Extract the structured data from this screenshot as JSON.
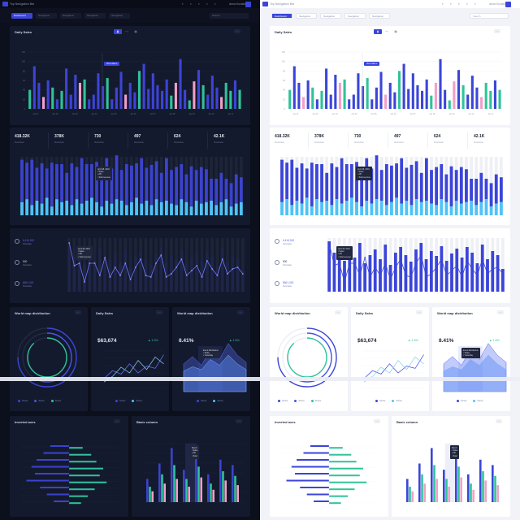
{
  "app": {
    "title": "Top Navigation Bar",
    "user": "Anna Kovalchuk"
  },
  "tabs": [
    {
      "label": "Dashboard",
      "active": true
    },
    {
      "label": "Navigation",
      "active": false
    },
    {
      "label": "Navigation",
      "active": false
    },
    {
      "label": "Navigation",
      "active": false
    },
    {
      "label": "Navigation",
      "active": false
    }
  ],
  "search": {
    "placeholder": "Search"
  },
  "topbar_icons": [
    "bell-icon",
    "calendar-icon",
    "mail-icon",
    "settings-icon",
    "globe-icon"
  ],
  "daily_sales_card": {
    "title": "Daily Sales",
    "toggle": [
      "bar",
      "line",
      "grid"
    ],
    "tooltip": "View data",
    "ylabels": [
      "120",
      "100",
      "80",
      "60",
      "40",
      "20",
      "0"
    ],
    "xlabels": [
      "Apr 01",
      "Apr 02",
      "Apr 03",
      "Apr 04",
      "Apr 05",
      "Apr 06",
      "Apr 07",
      "Apr 08",
      "Apr 09",
      "Apr 10",
      "Apr 11"
    ]
  },
  "stats": [
    {
      "value": "418.32K",
      "label": "Overview"
    },
    {
      "value": "378K",
      "label": "Overview"
    },
    {
      "value": "730",
      "label": "Overview"
    },
    {
      "value": "497",
      "label": "Overview"
    },
    {
      "value": "624",
      "label": "Overview"
    },
    {
      "value": "42.1K",
      "label": "Overview"
    }
  ],
  "stacked_tooltip": {
    "date": "April 28, 2019",
    "rows": [
      "Sales",
      "Affi",
      "Total revenue"
    ]
  },
  "side_metrics": [
    {
      "value": "6,418,000",
      "label": "Overview"
    },
    {
      "value": "500",
      "label": "Overview"
    },
    {
      "value": "$561,000",
      "label": "Overview"
    }
  ],
  "combo_tooltip": {
    "date": "April 28, 2019",
    "rows": [
      "Sales",
      "Affi",
      "Total revenue"
    ]
  },
  "donut_card": {
    "title": "World map distribution",
    "legend": [
      "Series",
      "Series",
      "Series"
    ]
  },
  "daily_sales_small": {
    "title": "Daily Sales",
    "value": "$63,674",
    "pct": "1.5%",
    "legend": [
      "Series",
      "Series"
    ]
  },
  "world_map_area": {
    "title": "World map distribution",
    "value": "8.41%",
    "pct": "1.5%",
    "tooltip": [
      "Event Distribution",
      "Today",
      "Yesterday"
    ],
    "legend": [
      "Series",
      "Series"
    ]
  },
  "inverted_card": {
    "title": "Inverted axes"
  },
  "basic_column_card": {
    "title": "Basic column",
    "tooltip": [
      "March",
      "Sales",
      "Affi",
      "Total"
    ]
  },
  "colors": {
    "primary": "#3b45d9",
    "teal": "#2fc39a",
    "pink": "#f0a0c8",
    "cyan": "#4fc3f7",
    "dark_bg": "#0c0f1c",
    "dark_card": "#141a2d",
    "light_bg": "#f2f3f8"
  },
  "chart_data": [
    {
      "type": "bar",
      "title": "Daily Sales",
      "ylim": [
        0,
        120
      ],
      "values": [
        40,
        90,
        55,
        25,
        60,
        45,
        20,
        38,
        85,
        30,
        72,
        55,
        62,
        20,
        30,
        75,
        48,
        65,
        20,
        45,
        78,
        30,
        55,
        35,
        80,
        95,
        42,
        75,
        50,
        38,
        62,
        28,
        55,
        105,
        40,
        18,
        58,
        82,
        50,
        30,
        70,
        45,
        25,
        55,
        38,
        60,
        40
      ],
      "colors": [
        "t",
        "b",
        "b",
        "p",
        "b",
        "t",
        "b",
        "t",
        "b",
        "b",
        "b",
        "p",
        "t",
        "b",
        "b",
        "b",
        "b",
        "t",
        "b",
        "b",
        "b",
        "p",
        "b",
        "b",
        "t",
        "b",
        "b",
        "b",
        "b",
        "b",
        "b",
        "t",
        "p",
        "b",
        "b",
        "t",
        "p",
        "b",
        "t",
        "b",
        "b",
        "b",
        "p",
        "t",
        "t",
        "b",
        "t"
      ]
    },
    {
      "type": "bar",
      "title": "Stacked revenue",
      "series": [
        {
          "name": "Sales",
          "values": [
            58,
            50,
            62,
            45,
            55,
            40,
            60,
            48,
            52,
            38,
            57,
            44,
            62,
            50,
            46,
            55,
            40,
            58,
            48,
            60,
            42,
            56,
            50,
            47,
            62,
            45,
            55,
            52,
            40,
            58,
            46,
            52,
            48,
            38,
            55,
            42,
            50,
            45,
            30,
            36,
            40,
            28,
            32,
            40,
            34
          ]
        },
        {
          "name": "Affi",
          "values": [
            18,
            22,
            14,
            20,
            16,
            24,
            12,
            22,
            18,
            20,
            14,
            22,
            16,
            20,
            24,
            18,
            12,
            20,
            16,
            22,
            20,
            14,
            18,
            24,
            16,
            20,
            14,
            22,
            18,
            20,
            16,
            14,
            22,
            18,
            12,
            20,
            16,
            18,
            20,
            14,
            18,
            22,
            12,
            16,
            18
          ]
        }
      ]
    },
    {
      "type": "bar",
      "title": "Bars with line",
      "values": [
        62,
        48,
        55,
        38,
        50,
        42,
        60,
        35,
        45,
        52,
        40,
        58,
        33,
        48,
        55,
        45,
        37,
        52,
        60,
        40,
        50,
        44,
        56,
        38,
        47,
        53,
        42,
        55,
        48,
        35,
        58,
        40,
        50,
        45,
        28
      ],
      "line": [
        60,
        32,
        35,
        12,
        35,
        35,
        20,
        42,
        18,
        30,
        20,
        35,
        15,
        30,
        40,
        20,
        18,
        35,
        45,
        18,
        22,
        30,
        40,
        20,
        26,
        32,
        18,
        38,
        28,
        20,
        40,
        22,
        28,
        30,
        22
      ]
    },
    {
      "type": "pie",
      "title": "World map distribution",
      "values": [
        75,
        55,
        88
      ]
    },
    {
      "type": "line",
      "title": "Daily Sales",
      "series": [
        {
          "name": "Series",
          "values": [
            20,
            34,
            28,
            46,
            30,
            42,
            38,
            62
          ]
        },
        {
          "name": "Series",
          "values": [
            14,
            24,
            40,
            30,
            52,
            36,
            58,
            46
          ]
        }
      ]
    },
    {
      "type": "area",
      "title": "World map distribution",
      "series": [
        {
          "name": "Series",
          "values": [
            38,
            48,
            36,
            58,
            44,
            66,
            50,
            40
          ]
        },
        {
          "name": "Series",
          "values": [
            28,
            34,
            30,
            44,
            36,
            50,
            38,
            30
          ]
        }
      ]
    },
    {
      "type": "bar",
      "title": "Inverted axes",
      "series": [
        {
          "name": "A",
          "values": [
            22,
            30,
            38,
            44,
            40,
            50,
            34,
            26,
            18
          ]
        },
        {
          "name": "B",
          "values": [
            16,
            26,
            32,
            40,
            36,
            44,
            30,
            22,
            14
          ]
        }
      ]
    },
    {
      "type": "bar",
      "title": "Basic column",
      "series": [
        {
          "name": "Sales",
          "values": [
            30,
            50,
            70,
            42,
            60,
            36,
            55,
            48
          ]
        },
        {
          "name": "Affi",
          "values": [
            20,
            36,
            48,
            30,
            46,
            24,
            40,
            34
          ]
        },
        {
          "name": "Total",
          "values": [
            14,
            24,
            30,
            20,
            32,
            16,
            28,
            22
          ]
        }
      ]
    }
  ]
}
